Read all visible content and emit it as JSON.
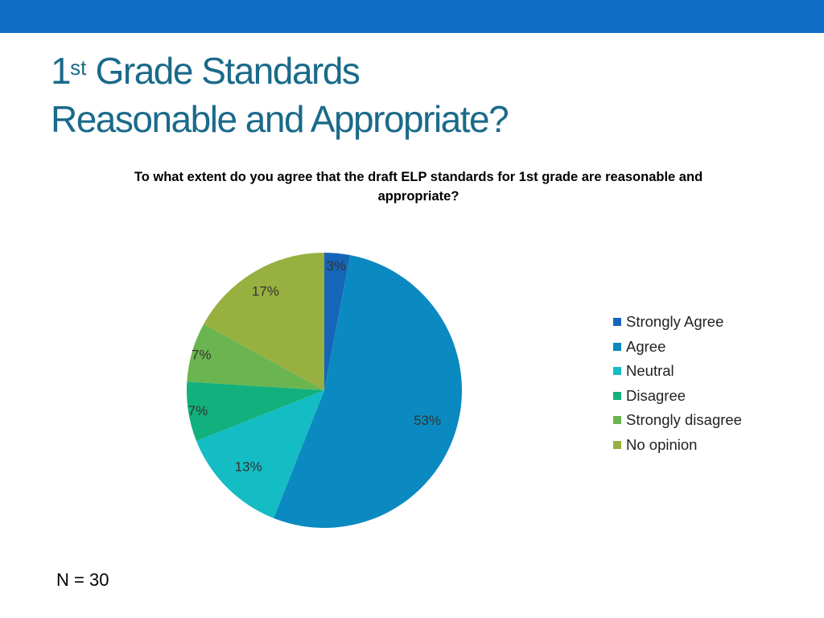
{
  "header": {
    "accent_color": "#0e6ec5"
  },
  "slide": {
    "title_line1_prefix": "1",
    "title_line1_sup": "st",
    "title_line1_rest": " Grade Standards",
    "title_line2": "Reasonable and Appropriate?",
    "title_color": "#1a6a8a"
  },
  "footer": {
    "note": "N = 30"
  },
  "chart_data": {
    "type": "pie",
    "title": "To what extent do you agree that the draft ELP standards for 1st grade are reasonable and appropriate?",
    "categories": [
      "Strongly Agree",
      "Agree",
      "Neutral",
      "Disagree",
      "Strongly disagree",
      "No opinion"
    ],
    "values": [
      3,
      53,
      13,
      7,
      7,
      17
    ],
    "labels": [
      "3%",
      "53%",
      "13%",
      "7%",
      "7%",
      "17%"
    ],
    "colors": [
      "#1565b8",
      "#0a8ac0",
      "#14bcc4",
      "#12b07c",
      "#6ab550",
      "#98b040"
    ],
    "legend_position": "right"
  }
}
